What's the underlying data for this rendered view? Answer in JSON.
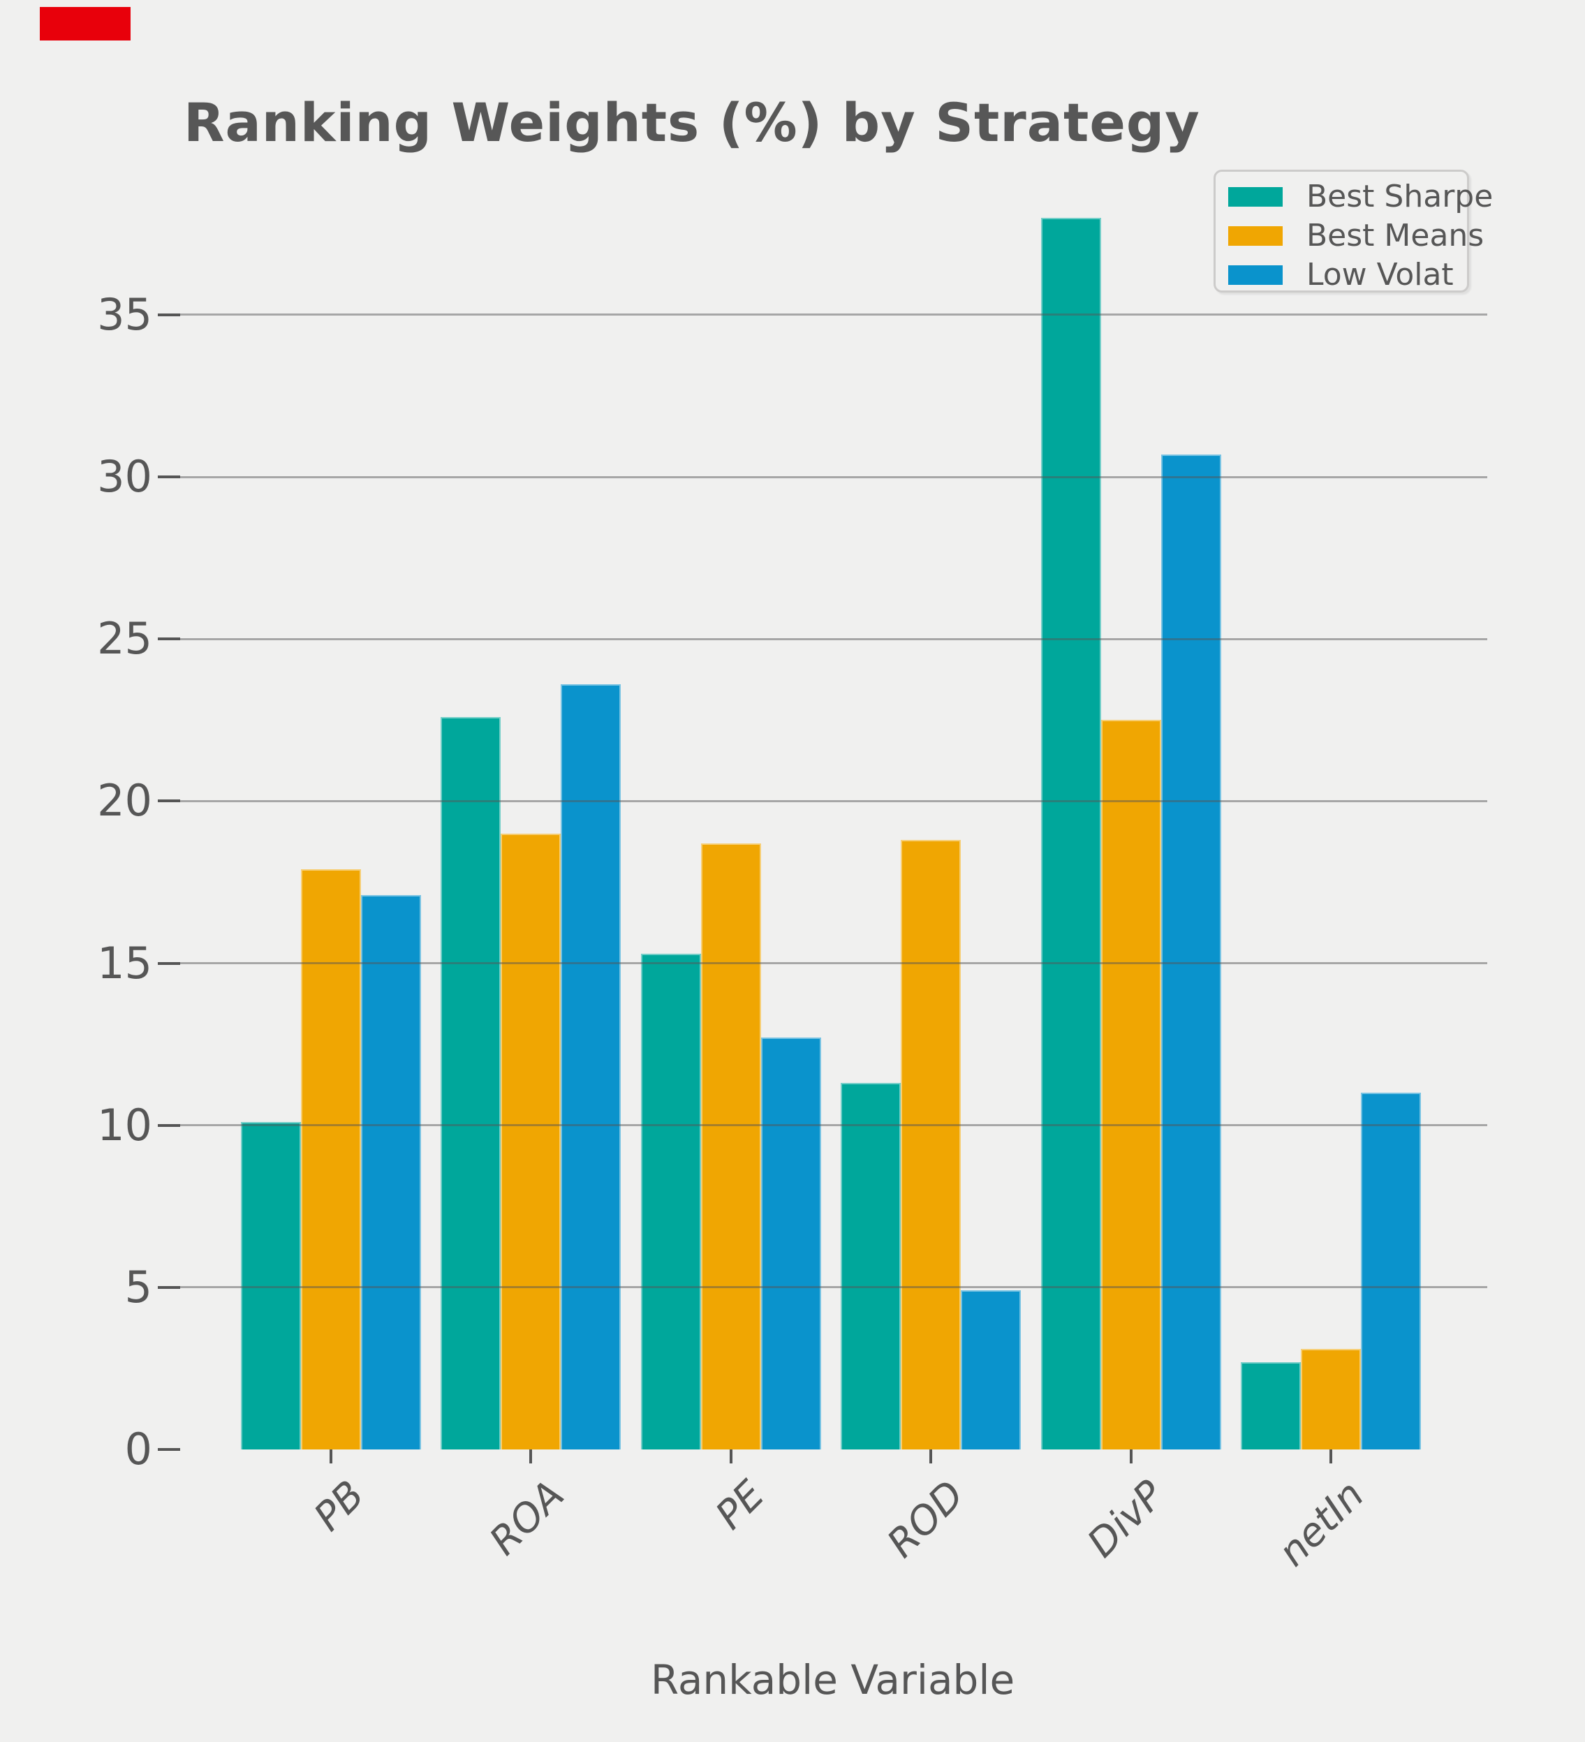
{
  "figure": {
    "background_color": "#f0f0ef",
    "text_color": "#565656",
    "gridline_color": "#9b9b9b"
  },
  "artifact": {
    "description": "red rectangle in top-left corner",
    "color": "#e8000b"
  },
  "chart_data": {
    "type": "bar",
    "title": "Ranking Weights (%) by Strategy",
    "xlabel": "Rankable Variable",
    "ylabel": "",
    "categories": [
      "PB",
      "ROA",
      "PE",
      "ROD",
      "DivP",
      "netIn"
    ],
    "series": [
      {
        "name": "Best Sharpe",
        "color": "#00a79b",
        "values": [
          10.1,
          22.6,
          15.3,
          11.3,
          38.0,
          2.7
        ]
      },
      {
        "name": "Best Means",
        "color": "#f0a602",
        "values": [
          17.9,
          19.0,
          18.7,
          18.8,
          22.5,
          3.1
        ]
      },
      {
        "name": "Low Volat",
        "color": "#0a93cc",
        "values": [
          17.1,
          23.6,
          12.7,
          4.9,
          30.7,
          11.0
        ]
      }
    ],
    "ylim": [
      0,
      39.9
    ],
    "yticks": [
      0,
      5,
      10,
      15,
      20,
      25,
      30,
      35
    ],
    "grid": "horizontal",
    "legend_position": "upper right"
  }
}
